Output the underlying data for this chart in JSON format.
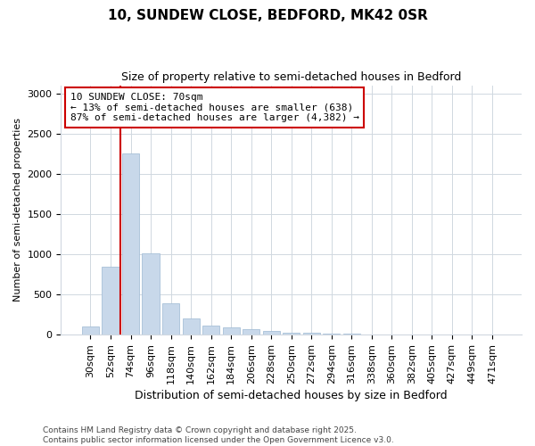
{
  "title1": "10, SUNDEW CLOSE, BEDFORD, MK42 0SR",
  "title2": "Size of property relative to semi-detached houses in Bedford",
  "xlabel": "Distribution of semi-detached houses by size in Bedford",
  "ylabel": "Number of semi-detached properties",
  "categories": [
    "30sqm",
    "52sqm",
    "74sqm",
    "96sqm",
    "118sqm",
    "140sqm",
    "162sqm",
    "184sqm",
    "206sqm",
    "228sqm",
    "250sqm",
    "272sqm",
    "294sqm",
    "316sqm",
    "338sqm",
    "360sqm",
    "382sqm",
    "405sqm",
    "427sqm",
    "449sqm",
    "471sqm"
  ],
  "values": [
    100,
    850,
    2250,
    1010,
    390,
    200,
    110,
    95,
    65,
    45,
    30,
    20,
    15,
    8,
    5,
    3,
    2,
    1,
    1,
    0,
    0
  ],
  "bar_color": "#c8d8ea",
  "bar_edge_color": "#a8c0d8",
  "red_line_index": 2,
  "annotation_title": "10 SUNDEW CLOSE: 70sqm",
  "annotation_line1": "← 13% of semi-detached houses are smaller (638)",
  "annotation_line2": "87% of semi-detached houses are larger (4,382) →",
  "annotation_box_facecolor": "#ffffff",
  "annotation_box_edgecolor": "#cc0000",
  "red_line_color": "#cc0000",
  "grid_color": "#d0d8e0",
  "background_color": "#ffffff",
  "ylim": [
    0,
    3100
  ],
  "yticks": [
    0,
    500,
    1000,
    1500,
    2000,
    2500,
    3000
  ],
  "footer1": "Contains HM Land Registry data © Crown copyright and database right 2025.",
  "footer2": "Contains public sector information licensed under the Open Government Licence v3.0.",
  "title1_fontsize": 11,
  "title2_fontsize": 9,
  "xlabel_fontsize": 9,
  "ylabel_fontsize": 8,
  "tick_fontsize": 8,
  "annotation_fontsize": 8,
  "footer_fontsize": 6.5
}
